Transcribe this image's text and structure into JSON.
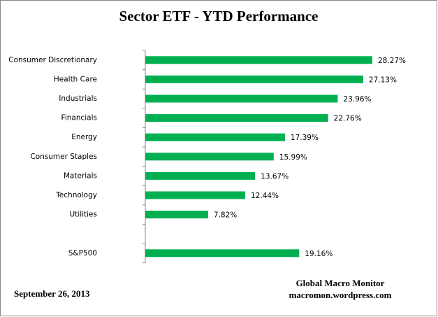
{
  "chart_data": {
    "type": "bar",
    "orientation": "horizontal",
    "title": "Sector ETF - YTD  Performance",
    "categories": [
      "Consumer Discretionary",
      "Health Care",
      "Industrials",
      "Financials",
      "Energy",
      "Consumer Staples",
      "Materials",
      "Technology",
      "Utilities",
      null,
      "S&P500"
    ],
    "values": [
      28.27,
      27.13,
      23.96,
      22.76,
      17.39,
      15.99,
      13.67,
      12.44,
      7.82,
      null,
      19.16
    ],
    "value_labels": [
      "28.27%",
      "27.13%",
      "23.96%",
      "22.76%",
      "17.39%",
      "15.99%",
      "13.67%",
      "12.44%",
      "7.82%",
      null,
      "19.16%"
    ],
    "color": "#00b050",
    "date": "September 26, 2013",
    "source": [
      "Global Macro Monitor",
      "macromon.wordpress.com"
    ]
  }
}
